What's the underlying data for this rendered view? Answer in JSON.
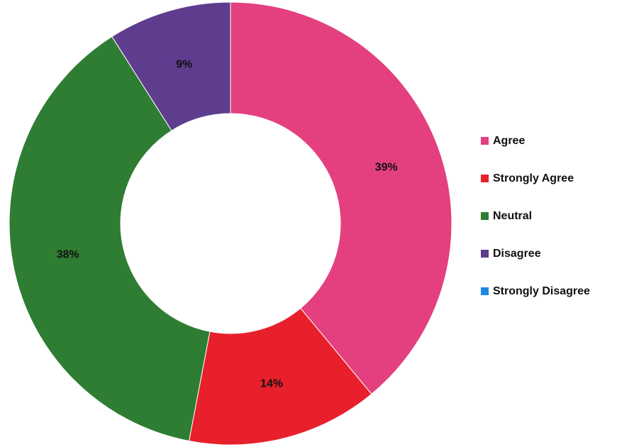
{
  "chart_data": {
    "type": "pie",
    "donut": true,
    "title": "",
    "legend_position": "right",
    "series": [
      {
        "name": "Agree",
        "value": 39,
        "label": "39%",
        "color": "#e4407f"
      },
      {
        "name": "Strongly Agree",
        "value": 14,
        "label": "14%",
        "color": "#e8202c"
      },
      {
        "name": "Neutral",
        "value": 38,
        "label": "38%",
        "color": "#2e7d32"
      },
      {
        "name": "Disagree",
        "value": 9,
        "label": "9%",
        "color": "#5e3d8f"
      },
      {
        "name": "Strongly Disagree",
        "value": 0,
        "label": "",
        "color": "#1e88e5"
      }
    ]
  }
}
